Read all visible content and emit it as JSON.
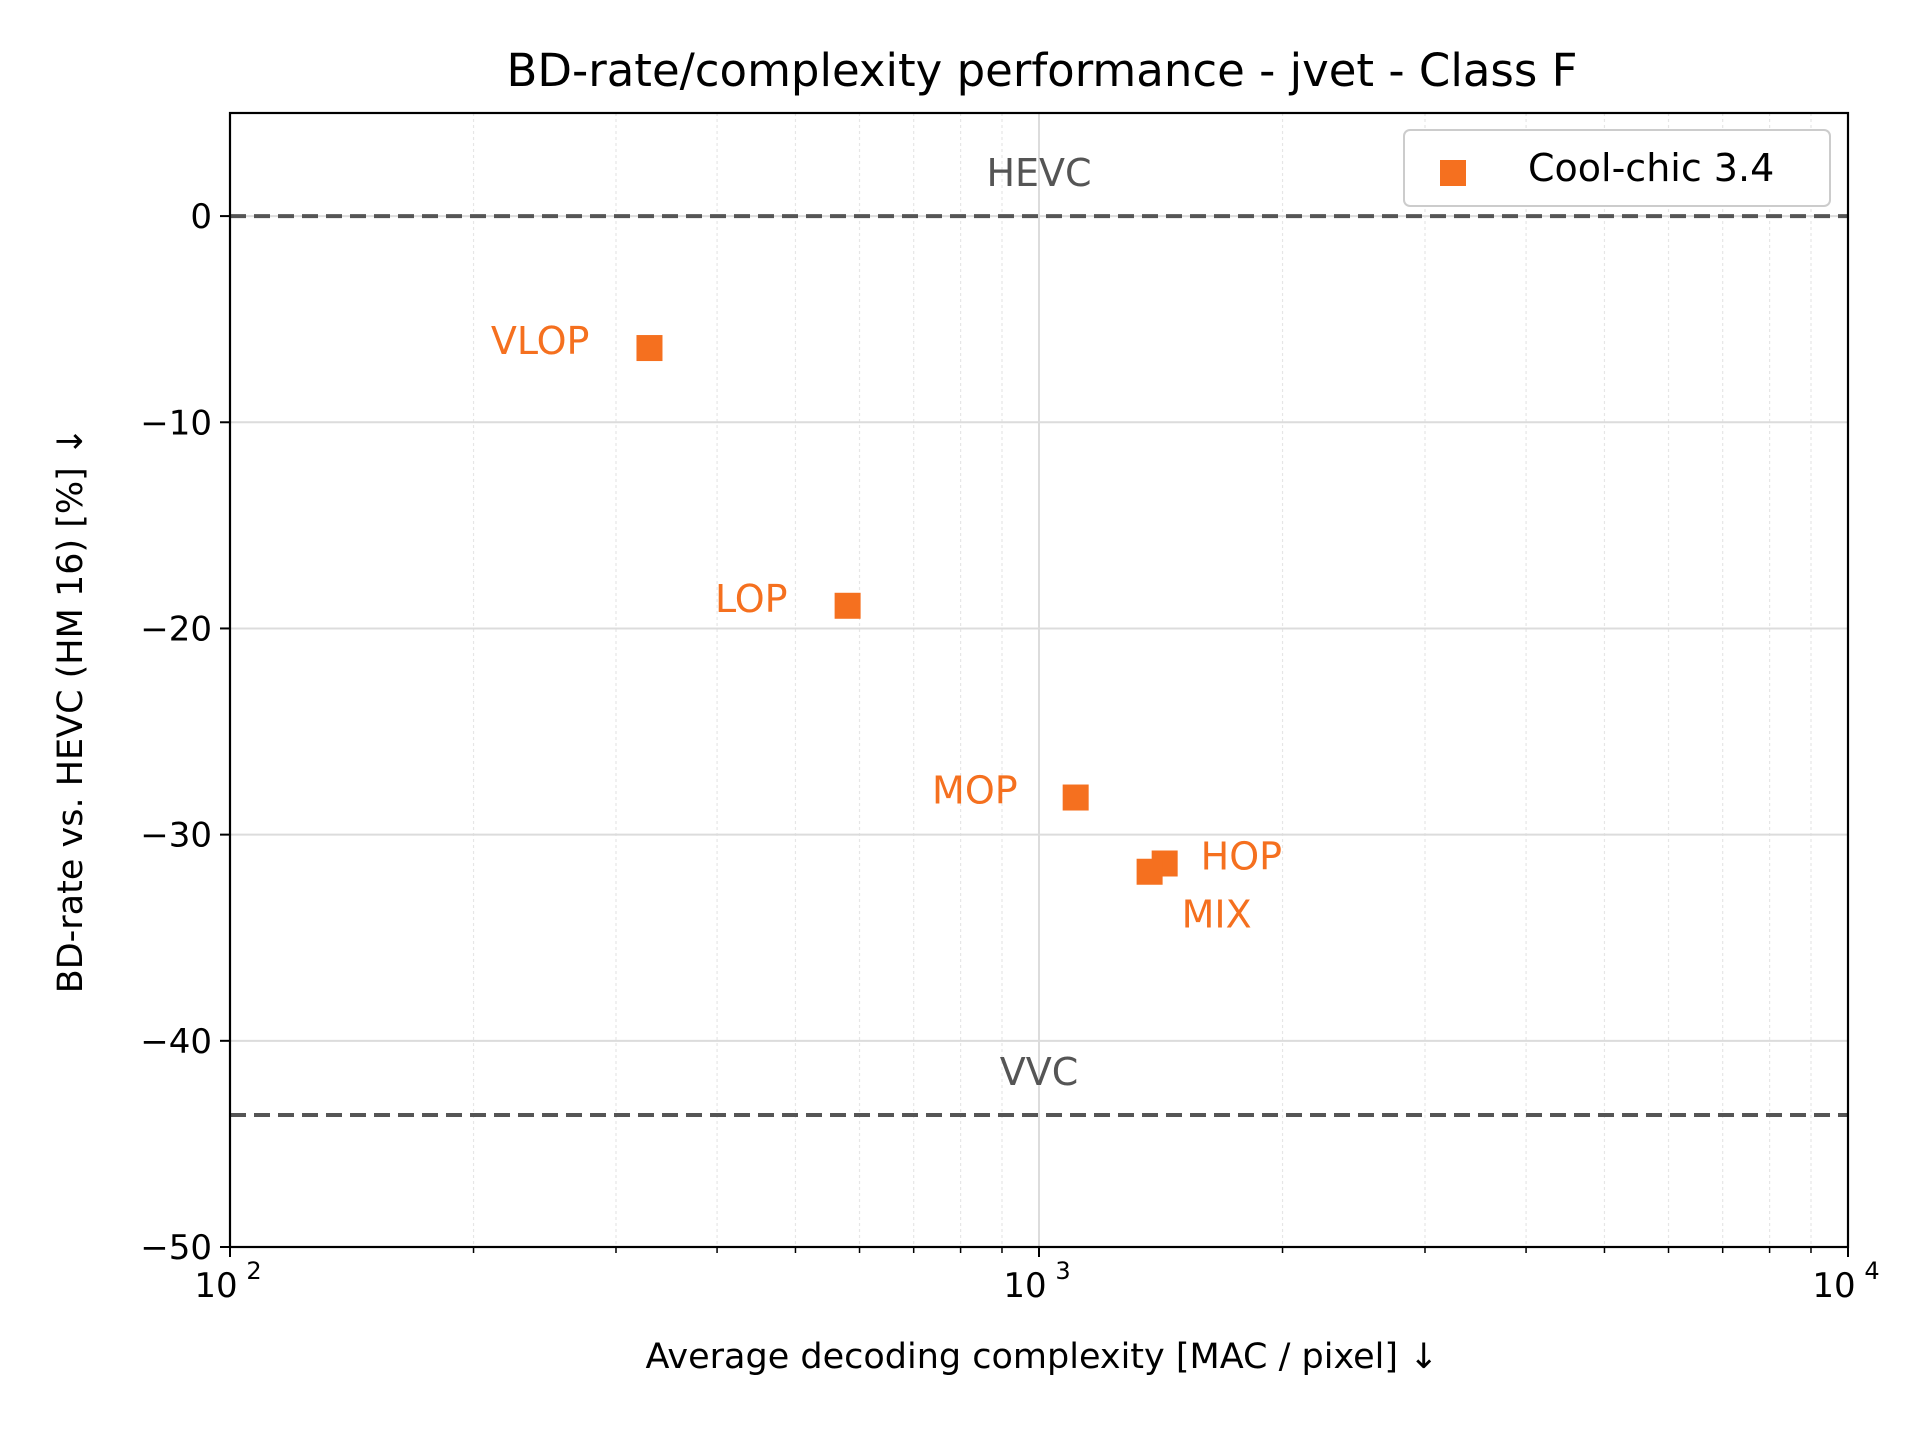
{
  "chart_data": {
    "type": "scatter",
    "title": "BD-rate/complexity performance - jvet - Class F",
    "xlabel": "Average decoding complexity [MAC / pixel]  ↓",
    "ylabel": "BD-rate vs. HEVC (HM 16) [%]  ↓",
    "xscale": "log",
    "xlim": [
      100,
      10000
    ],
    "ylim": [
      -50,
      5
    ],
    "grid": true,
    "legend_position": "top-right",
    "x_ticks": [
      {
        "value": 100,
        "base": "10",
        "exp": "2"
      },
      {
        "value": 1000,
        "base": "10",
        "exp": "3"
      },
      {
        "value": 10000,
        "base": "10",
        "exp": "4"
      }
    ],
    "y_ticks": [
      {
        "value": 0,
        "label": "0"
      },
      {
        "value": -10,
        "label": "−10"
      },
      {
        "value": -20,
        "label": "−20"
      },
      {
        "value": -30,
        "label": "−30"
      },
      {
        "value": -40,
        "label": "−40"
      },
      {
        "value": -50,
        "label": "−50"
      }
    ],
    "series": [
      {
        "name": "Cool-chic 3.4",
        "color": "#f5701f",
        "marker": "square",
        "points": [
          {
            "label": "VLOP",
            "x": 330,
            "y": -6.4
          },
          {
            "label": "LOP",
            "x": 580,
            "y": -18.9
          },
          {
            "label": "MOP",
            "x": 1110,
            "y": -28.2
          },
          {
            "label": "HOP",
            "x": 1430,
            "y": -31.4
          },
          {
            "label": "MIX",
            "x": 1370,
            "y": -31.8
          }
        ]
      }
    ],
    "reference_lines": [
      {
        "label": "HEVC",
        "y": 0,
        "color": "#555555"
      },
      {
        "label": "VVC",
        "y": -43.6,
        "color": "#555555"
      }
    ]
  }
}
